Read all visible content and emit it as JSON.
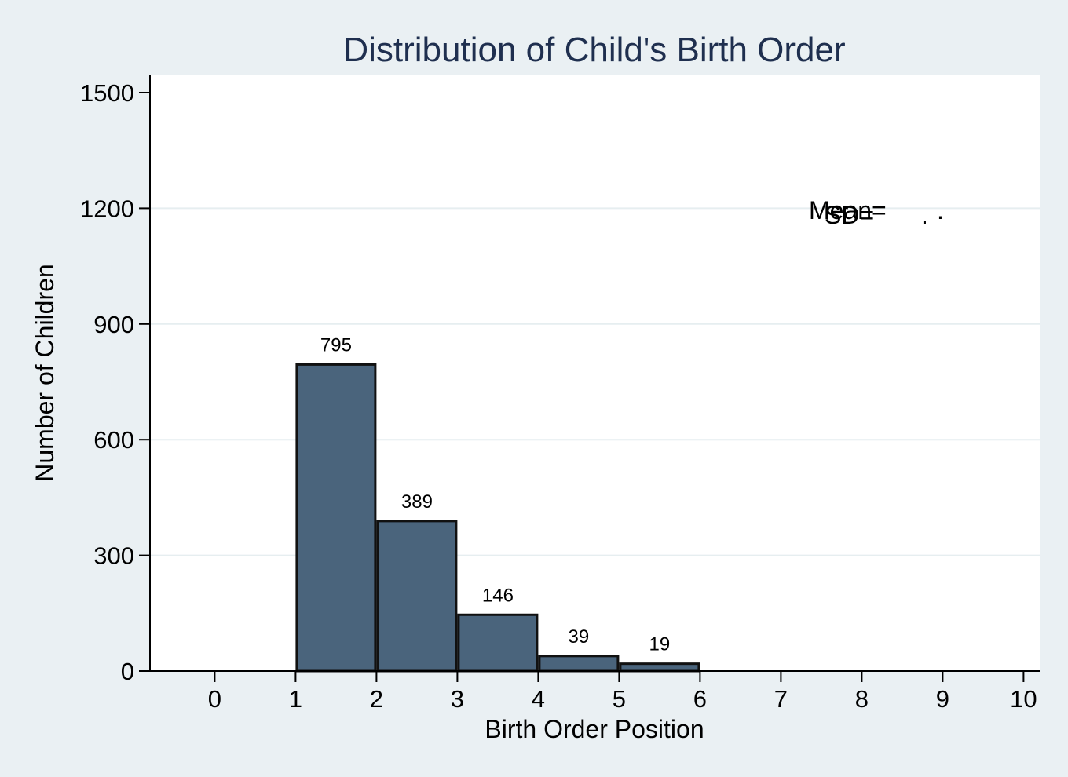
{
  "chart_data": {
    "type": "bar",
    "title": "Distribution of Child's Birth Order",
    "xlabel": "Birth Order Position",
    "ylabel": "Number of Children",
    "bins": [
      {
        "start": 1,
        "end": 2,
        "value": 795
      },
      {
        "start": 2,
        "end": 3,
        "value": 389
      },
      {
        "start": 3,
        "end": 4,
        "value": 146
      },
      {
        "start": 4,
        "end": 5,
        "value": 39
      },
      {
        "start": 5,
        "end": 6,
        "value": 19
      }
    ],
    "xlim": [
      -0.8,
      10.2
    ],
    "ylim": [
      0,
      1500
    ],
    "xticks": [
      0,
      1,
      2,
      3,
      4,
      5,
      6,
      7,
      8,
      9,
      10
    ],
    "yticks": [
      0,
      300,
      600,
      900,
      1200,
      1500
    ],
    "grid": "horizontal",
    "bar_color": "#4a647c",
    "annotations": {
      "mean_text": "Mean=",
      "sd_text": "SD=",
      "mean_value": ".",
      "sd_value": "."
    }
  }
}
